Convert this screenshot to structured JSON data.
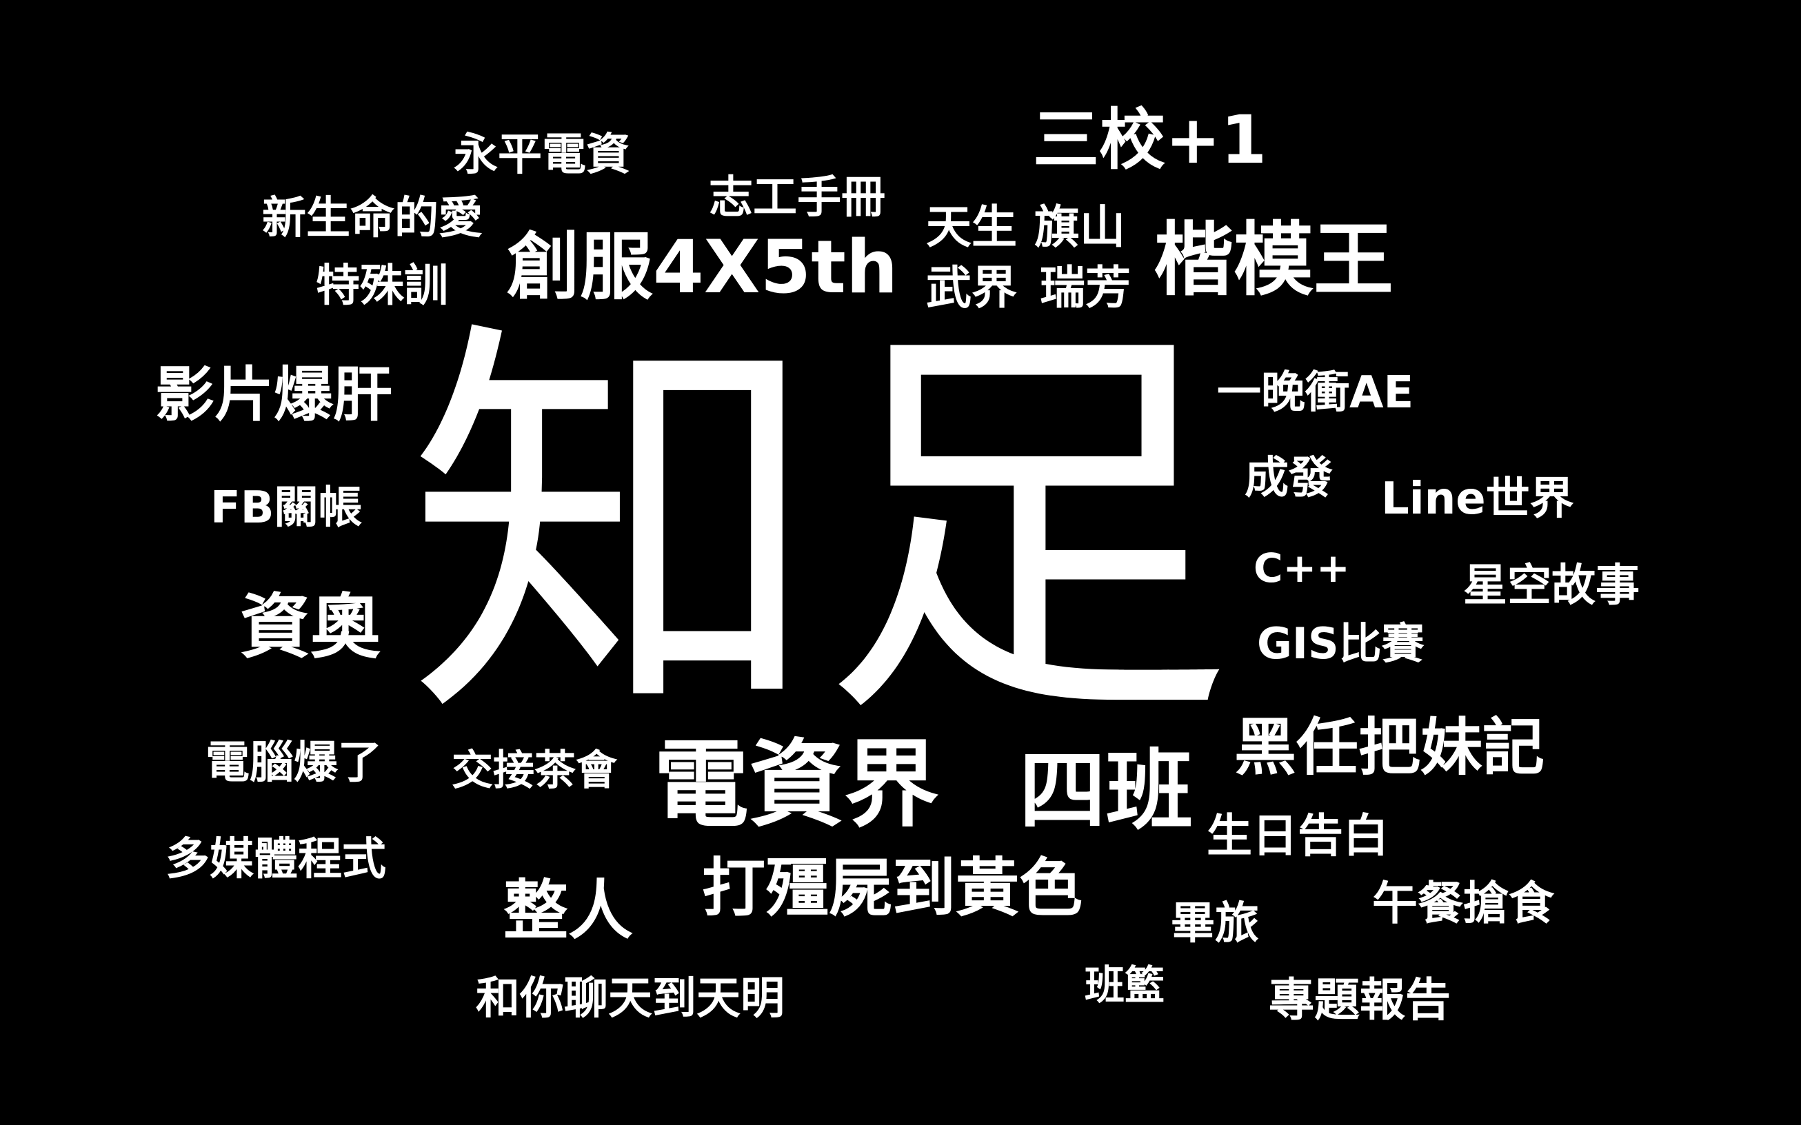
{
  "background_color": "#000000",
  "text_color": "#ffffff",
  "hero_word": "知足",
  "words": [
    "永平電資",
    "志工手冊",
    "三校+1",
    "新生命的愛",
    "特殊訓",
    "創服4X5th",
    "天生",
    "旗山",
    "武界",
    "瑞芳",
    "楷模王",
    "影片爆肝",
    "一晚衝AE",
    "FB關帳",
    "成發",
    "Line世界",
    "資奧",
    "C++",
    "星空故事",
    "GIS比賽",
    "電腦爆了",
    "交接茶會",
    "電資界",
    "四班",
    "黑任把妹記",
    "多媒體程式",
    "生日告白",
    "打殭屍到黃色",
    "整人",
    "午餐搶食",
    "畢旅",
    "和你聊天到天明",
    "班籃",
    "專題報告"
  ]
}
